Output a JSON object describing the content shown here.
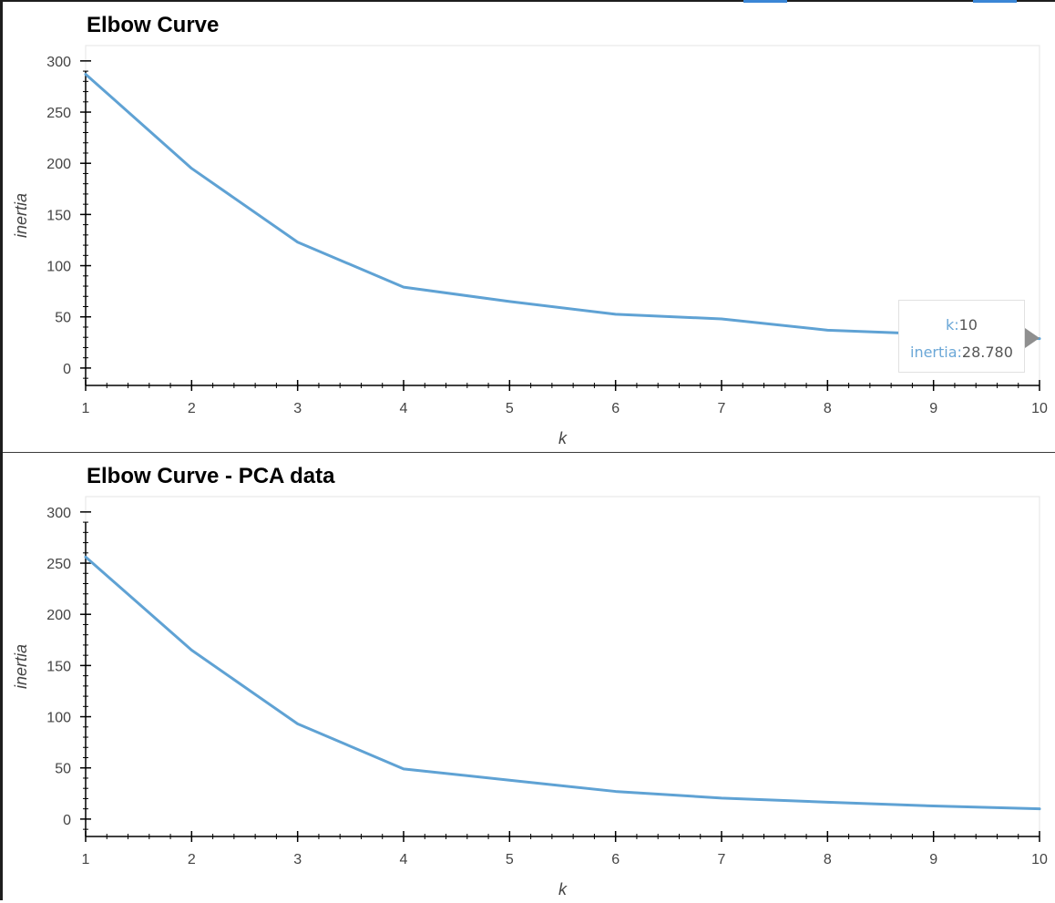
{
  "colors": {
    "line": "#5fa2d4",
    "axis": "#000000",
    "frame": "#e5e5e5",
    "text": "#444444"
  },
  "chart_data": [
    {
      "type": "line",
      "title": "Elbow Curve",
      "xlabel": "k",
      "ylabel": "inertia",
      "x": [
        1,
        2,
        3,
        4,
        5,
        6,
        7,
        8,
        9,
        10
      ],
      "series": [
        {
          "values": [
            287,
            195,
            123,
            79,
            65,
            52.5,
            48,
            37,
            33,
            28.78
          ]
        }
      ],
      "xlim": [
        1,
        10
      ],
      "ylim": [
        -17,
        315
      ],
      "xticks": [
        "1",
        "2",
        "3",
        "4",
        "5",
        "6",
        "7",
        "8",
        "9",
        "10"
      ],
      "yticks": [
        "0",
        "50",
        "100",
        "150",
        "200",
        "250",
        "300"
      ],
      "grid": false,
      "tooltip": {
        "k_label": "k:",
        "k_value": "10",
        "inertia_label": "inertia:",
        "inertia_value": "28.780"
      }
    },
    {
      "type": "line",
      "title": "Elbow Curve - PCA data",
      "xlabel": "k",
      "ylabel": "inertia",
      "x": [
        1,
        2,
        3,
        4,
        5,
        6,
        7,
        8,
        9,
        10
      ],
      "series": [
        {
          "values": [
            256,
            165,
            93,
            49,
            38,
            27,
            20.5,
            16.5,
            12.8,
            10
          ]
        }
      ],
      "xlim": [
        1,
        10
      ],
      "ylim": [
        -17,
        315
      ],
      "xticks": [
        "1",
        "2",
        "3",
        "4",
        "5",
        "6",
        "7",
        "8",
        "9",
        "10"
      ],
      "yticks": [
        "0",
        "50",
        "100",
        "150",
        "200",
        "250",
        "300"
      ],
      "grid": false
    }
  ]
}
